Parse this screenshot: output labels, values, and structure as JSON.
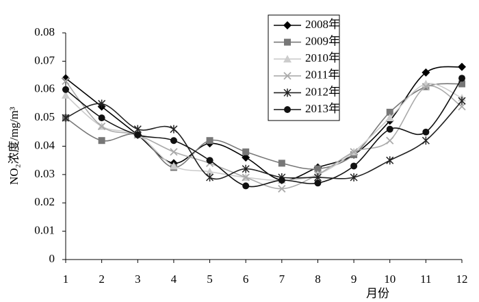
{
  "chart_data": {
    "type": "line",
    "y_label": "NO₂浓度/mg/m³",
    "x_label": "月份",
    "x": [
      1,
      2,
      3,
      4,
      5,
      6,
      7,
      8,
      9,
      10,
      11,
      12
    ],
    "xlim": [
      1,
      12
    ],
    "xticks": [
      1,
      2,
      3,
      4,
      5,
      6,
      7,
      8,
      9,
      10,
      11,
      12
    ],
    "ylim": [
      0,
      0.08
    ],
    "yticks": [
      0,
      0.01,
      0.02,
      0.03,
      0.04,
      0.05,
      0.06,
      0.07,
      0.08
    ],
    "grid": false,
    "legend": "upper-center",
    "smooth": true,
    "series": [
      {
        "name": "2008年",
        "color": "#000000",
        "marker": "diamond",
        "values": [
          0.064,
          0.054,
          0.044,
          0.034,
          0.041,
          0.036,
          0.028,
          0.0325,
          0.037,
          0.049,
          0.066,
          0.068
        ]
      },
      {
        "name": "2009年",
        "color": "#777777",
        "marker": "square",
        "values": [
          0.05,
          0.042,
          0.044,
          0.0325,
          0.042,
          0.038,
          0.034,
          0.032,
          0.037,
          0.052,
          0.061,
          0.062
        ]
      },
      {
        "name": "2010年",
        "color": "#cccccc",
        "marker": "triangle",
        "values": [
          0.058,
          0.047,
          0.044,
          0.033,
          0.031,
          0.029,
          0.028,
          0.03,
          0.038,
          0.05,
          0.062,
          0.057
        ]
      },
      {
        "name": "2011年",
        "color": "#aaaaaa",
        "marker": "x",
        "values": [
          0.063,
          0.047,
          0.044,
          0.038,
          0.034,
          0.029,
          0.025,
          0.03,
          0.038,
          0.042,
          0.061,
          0.054
        ]
      },
      {
        "name": "2012年",
        "color": "#222222",
        "marker": "asterisk",
        "values": [
          0.05,
          0.055,
          0.046,
          0.046,
          0.029,
          0.032,
          0.029,
          0.029,
          0.029,
          0.035,
          0.042,
          0.056
        ]
      },
      {
        "name": "2013年",
        "color": "#111111",
        "marker": "circle",
        "values": [
          0.06,
          0.05,
          0.044,
          0.042,
          0.035,
          0.026,
          0.028,
          0.027,
          0.033,
          0.046,
          0.045,
          0.064
        ]
      }
    ]
  }
}
